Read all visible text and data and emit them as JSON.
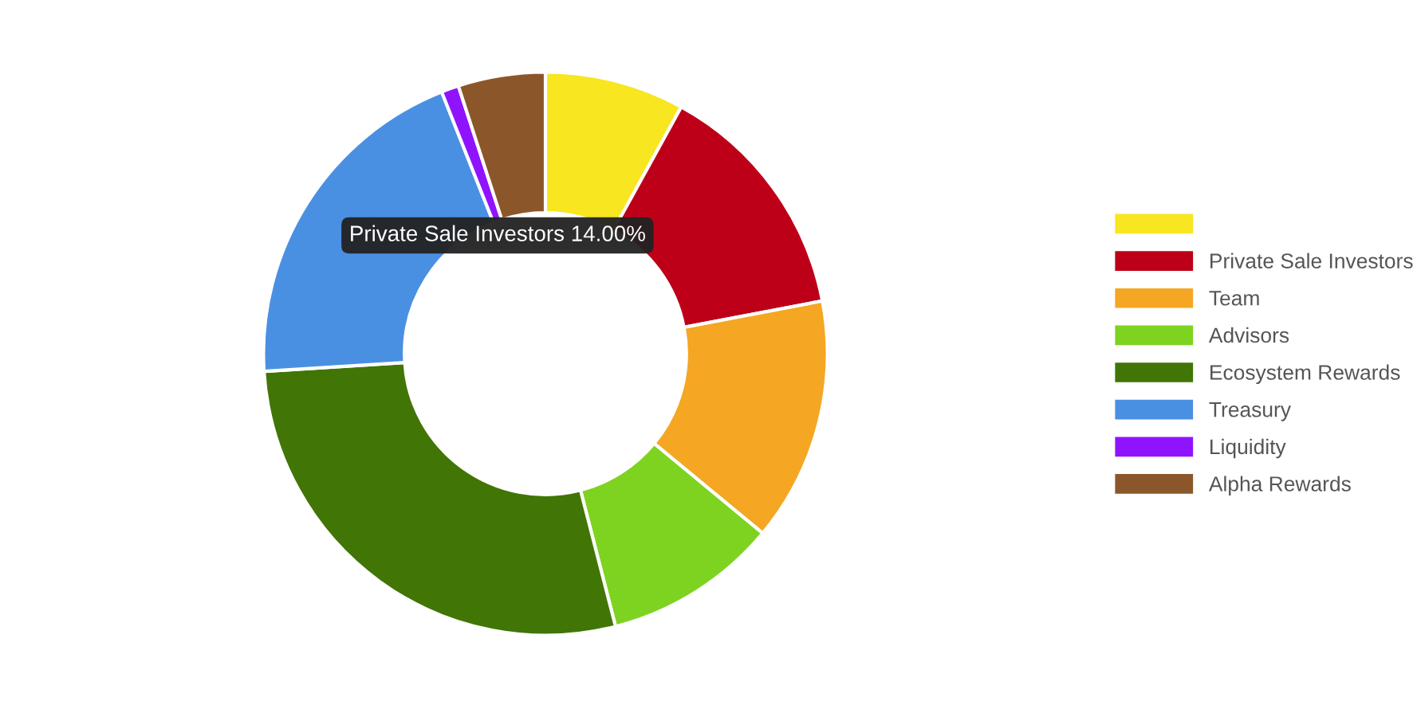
{
  "chart_data": {
    "type": "donut",
    "categories": [
      null,
      "Private Sale Investors",
      "Team",
      "Advisors",
      "Ecosystem Rewards",
      "Treasury",
      "Liquidity",
      "Alpha Rewards"
    ],
    "values": [
      8,
      14,
      14,
      10,
      28,
      20,
      1,
      5
    ],
    "colors": [
      "#f7e620",
      "#bd0018",
      "#f5a623",
      "#7ed321",
      "#417505",
      "#4a90e2",
      "#9013fe",
      "#8b572a"
    ],
    "annotations": [
      "Private Sale Investors 14.00%"
    ],
    "legend": "right"
  }
}
